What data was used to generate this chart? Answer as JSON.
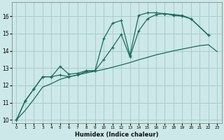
{
  "xlabel": "Humidex (Indice chaleur)",
  "background_color": "#cce8e8",
  "grid_color": "#aacccc",
  "line_color": "#1a6b5a",
  "xlim": [
    -0.5,
    23.5
  ],
  "ylim": [
    9.8,
    16.8
  ],
  "yticks": [
    10,
    11,
    12,
    13,
    14,
    15,
    16
  ],
  "xticks": [
    0,
    1,
    2,
    3,
    4,
    5,
    6,
    7,
    8,
    9,
    10,
    11,
    12,
    13,
    14,
    15,
    16,
    17,
    18,
    19,
    20,
    21,
    22,
    23
  ],
  "line_peak1_x": [
    0,
    1,
    2,
    3,
    4,
    5,
    6,
    7,
    8,
    9,
    10,
    11,
    12,
    13,
    14,
    15,
    16,
    17,
    18,
    19,
    20,
    22
  ],
  "line_peak1_y": [
    10.0,
    11.1,
    11.8,
    12.5,
    12.5,
    13.1,
    12.65,
    12.7,
    12.85,
    12.85,
    14.7,
    15.6,
    15.75,
    13.75,
    16.05,
    16.2,
    16.2,
    16.15,
    16.1,
    16.05,
    15.85,
    14.9
  ],
  "line_peak2_x": [
    0,
    1,
    2,
    3,
    4,
    5,
    6,
    7,
    8,
    9,
    10,
    11,
    12,
    13,
    14,
    15,
    16,
    17,
    18,
    19,
    20,
    22
  ],
  "line_peak2_y": [
    10.0,
    11.1,
    11.8,
    12.5,
    12.5,
    12.6,
    12.5,
    12.6,
    12.8,
    12.85,
    13.5,
    14.2,
    14.95,
    13.65,
    15.15,
    15.85,
    16.1,
    16.15,
    16.05,
    16.0,
    15.85,
    14.9
  ],
  "line_linear_x": [
    0,
    1,
    2,
    3,
    4,
    5,
    6,
    7,
    8,
    9,
    10,
    11,
    12,
    13,
    14,
    15,
    16,
    17,
    18,
    19,
    20,
    21,
    22,
    23
  ],
  "line_linear_y": [
    10.0,
    10.55,
    11.2,
    11.9,
    12.1,
    12.35,
    12.5,
    12.6,
    12.72,
    12.82,
    12.92,
    13.05,
    13.18,
    13.32,
    13.48,
    13.62,
    13.77,
    13.88,
    14.0,
    14.1,
    14.2,
    14.3,
    14.35,
    13.95
  ]
}
